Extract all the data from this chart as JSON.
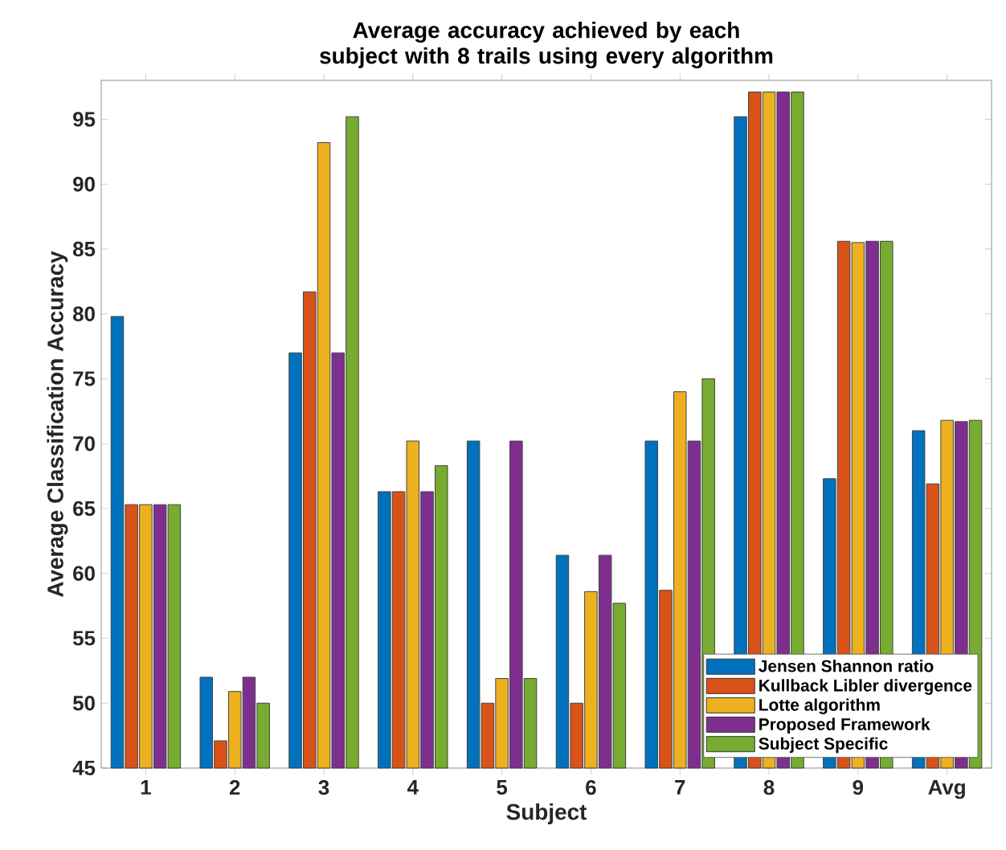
{
  "chart_data": {
    "type": "bar",
    "title": "Average accuracy achieved by each subject with 8 trails using every algorithm",
    "xlabel": "Subject",
    "ylabel": "Average Classification Accuracy",
    "categories": [
      "1",
      "2",
      "3",
      "4",
      "5",
      "6",
      "7",
      "8",
      "9",
      "Avg"
    ],
    "series": [
      {
        "name": "Jensen Shannon ratio",
        "color": "#0072bd",
        "values": [
          79.8,
          52,
          77,
          66.3,
          70.2,
          61.4,
          70.2,
          95.2,
          67.3,
          71
        ]
      },
      {
        "name": "Kullback Libler divergence",
        "color": "#d95319",
        "values": [
          65.3,
          47.1,
          81.7,
          66.3,
          50,
          50,
          58.7,
          97.1,
          85.6,
          66.9
        ]
      },
      {
        "name": "Lotte algorithm",
        "color": "#edb120",
        "values": [
          65.3,
          50.9,
          93.2,
          70.2,
          51.9,
          58.6,
          74,
          97.1,
          85.5,
          71.8
        ]
      },
      {
        "name": "Proposed Framework",
        "color": "#7e2f8e",
        "values": [
          65.3,
          52,
          77,
          66.3,
          70.2,
          61.4,
          70.2,
          97.1,
          85.6,
          71.7
        ]
      },
      {
        "name": "Subject Specific",
        "color": "#77ac30",
        "values": [
          65.3,
          50,
          95.2,
          68.3,
          51.9,
          57.7,
          75,
          97.1,
          85.6,
          71.8
        ]
      }
    ],
    "ylim": [
      45,
      98
    ],
    "yticks": [
      45,
      50,
      55,
      60,
      65,
      70,
      75,
      80,
      85,
      90,
      95
    ],
    "grid": false,
    "legend": "bottom right"
  }
}
